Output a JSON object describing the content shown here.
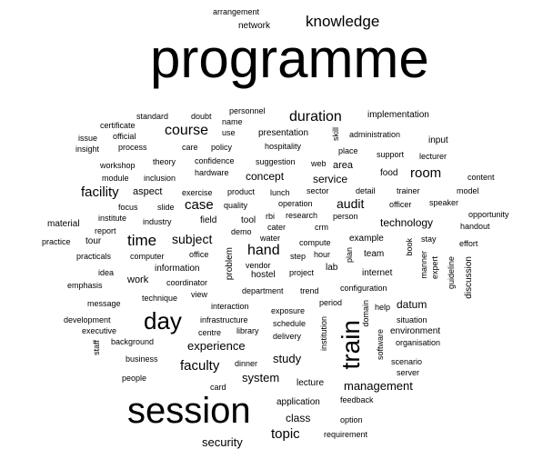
{
  "text_color": "#000000",
  "background": "#ffffff",
  "words": [
    {
      "text": "programme"
    },
    {
      "text": "session"
    },
    {
      "text": "train"
    },
    {
      "text": "day"
    },
    {
      "text": "knowledge"
    },
    {
      "text": "arrangement"
    },
    {
      "text": "network"
    },
    {
      "text": "standard"
    },
    {
      "text": "doubt"
    },
    {
      "text": "personnel"
    },
    {
      "text": "name"
    },
    {
      "text": "duration"
    },
    {
      "text": "implementation"
    },
    {
      "text": "certificate"
    },
    {
      "text": "course"
    },
    {
      "text": "use"
    },
    {
      "text": "presentation"
    },
    {
      "text": "skill"
    },
    {
      "text": "administration"
    },
    {
      "text": "issue"
    },
    {
      "text": "official"
    },
    {
      "text": "input"
    },
    {
      "text": "insight"
    },
    {
      "text": "process"
    },
    {
      "text": "care"
    },
    {
      "text": "policy"
    },
    {
      "text": "hospitality"
    },
    {
      "text": "place"
    },
    {
      "text": "support"
    },
    {
      "text": "lecturer"
    },
    {
      "text": "workshop"
    },
    {
      "text": "theory"
    },
    {
      "text": "confidence"
    },
    {
      "text": "suggestion"
    },
    {
      "text": "web"
    },
    {
      "text": "area"
    },
    {
      "text": "hardware"
    },
    {
      "text": "module"
    },
    {
      "text": "inclusion"
    },
    {
      "text": "concept"
    },
    {
      "text": "service"
    },
    {
      "text": "food"
    },
    {
      "text": "room"
    },
    {
      "text": "content"
    },
    {
      "text": "facility"
    },
    {
      "text": "aspect"
    },
    {
      "text": "exercise"
    },
    {
      "text": "product"
    },
    {
      "text": "lunch"
    },
    {
      "text": "sector"
    },
    {
      "text": "detail"
    },
    {
      "text": "trainer"
    },
    {
      "text": "model"
    },
    {
      "text": "focus"
    },
    {
      "text": "slide"
    },
    {
      "text": "case"
    },
    {
      "text": "quality"
    },
    {
      "text": "operation"
    },
    {
      "text": "audit"
    },
    {
      "text": "officer"
    },
    {
      "text": "speaker"
    },
    {
      "text": "institute"
    },
    {
      "text": "rbi"
    },
    {
      "text": "research"
    },
    {
      "text": "person"
    },
    {
      "text": "opportunity"
    },
    {
      "text": "material"
    },
    {
      "text": "industry"
    },
    {
      "text": "field"
    },
    {
      "text": "tool"
    },
    {
      "text": "cater"
    },
    {
      "text": "crm"
    },
    {
      "text": "technology"
    },
    {
      "text": "handout"
    },
    {
      "text": "report"
    },
    {
      "text": "demo"
    },
    {
      "text": "practice"
    },
    {
      "text": "tour"
    },
    {
      "text": "time"
    },
    {
      "text": "subject"
    },
    {
      "text": "water"
    },
    {
      "text": "compute"
    },
    {
      "text": "example"
    },
    {
      "text": "stay"
    },
    {
      "text": "effort"
    },
    {
      "text": "practicals"
    },
    {
      "text": "computer"
    },
    {
      "text": "office"
    },
    {
      "text": "hand"
    },
    {
      "text": "step"
    },
    {
      "text": "hour"
    },
    {
      "text": "plan"
    },
    {
      "text": "team"
    },
    {
      "text": "book"
    },
    {
      "text": "manner"
    },
    {
      "text": "expert"
    },
    {
      "text": "guideline"
    },
    {
      "text": "discussion"
    },
    {
      "text": "problem"
    },
    {
      "text": "vendor"
    },
    {
      "text": "information"
    },
    {
      "text": "lab"
    },
    {
      "text": "idea"
    },
    {
      "text": "hostel"
    },
    {
      "text": "project"
    },
    {
      "text": "internet"
    },
    {
      "text": "emphasis"
    },
    {
      "text": "work"
    },
    {
      "text": "coordinator"
    },
    {
      "text": "department"
    },
    {
      "text": "trend"
    },
    {
      "text": "configuration"
    },
    {
      "text": "datum"
    },
    {
      "text": "view"
    },
    {
      "text": "message"
    },
    {
      "text": "technique"
    },
    {
      "text": "period"
    },
    {
      "text": "interaction"
    },
    {
      "text": "exposure"
    },
    {
      "text": "help"
    },
    {
      "text": "domain"
    },
    {
      "text": "development"
    },
    {
      "text": "infrastructure"
    },
    {
      "text": "schedule"
    },
    {
      "text": "situation"
    },
    {
      "text": "executive"
    },
    {
      "text": "centre"
    },
    {
      "text": "library"
    },
    {
      "text": "delivery"
    },
    {
      "text": "institution"
    },
    {
      "text": "environment"
    },
    {
      "text": "organisation"
    },
    {
      "text": "staff"
    },
    {
      "text": "background"
    },
    {
      "text": "experience"
    },
    {
      "text": "software"
    },
    {
      "text": "business"
    },
    {
      "text": "study"
    },
    {
      "text": "scenario"
    },
    {
      "text": "faculty"
    },
    {
      "text": "dinner"
    },
    {
      "text": "server"
    },
    {
      "text": "people"
    },
    {
      "text": "system"
    },
    {
      "text": "lecture"
    },
    {
      "text": "management"
    },
    {
      "text": "card"
    },
    {
      "text": "application"
    },
    {
      "text": "feedback"
    },
    {
      "text": "class"
    },
    {
      "text": "option"
    },
    {
      "text": "topic"
    },
    {
      "text": "requirement"
    },
    {
      "text": "security"
    }
  ]
}
